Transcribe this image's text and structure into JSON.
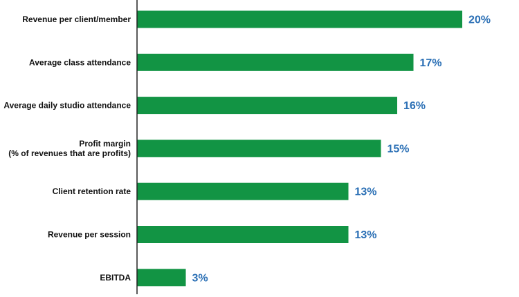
{
  "chart_data": {
    "type": "bar",
    "orientation": "horizontal",
    "title": "",
    "xlabel": "",
    "ylabel": "",
    "categories": [
      [
        "Revenue per client/member"
      ],
      [
        "Average class attendance"
      ],
      [
        "Average daily studio attendance"
      ],
      [
        "Profit margin",
        "(% of revenues that are profits)"
      ],
      [
        "Client retention rate"
      ],
      [
        "Revenue per session"
      ],
      [
        "EBITDA"
      ]
    ],
    "values": [
      20,
      17,
      16,
      15,
      13,
      13,
      3
    ],
    "value_labels": [
      "20%",
      "17%",
      "16%",
      "15%",
      "13%",
      "13%",
      "3%"
    ],
    "xlim": [
      0,
      20
    ],
    "grid": false,
    "legend": "none",
    "colors": {
      "bar": "#129444",
      "value_text": "#2a6fb5",
      "axis": "#222222",
      "category_text": "#111111"
    }
  }
}
